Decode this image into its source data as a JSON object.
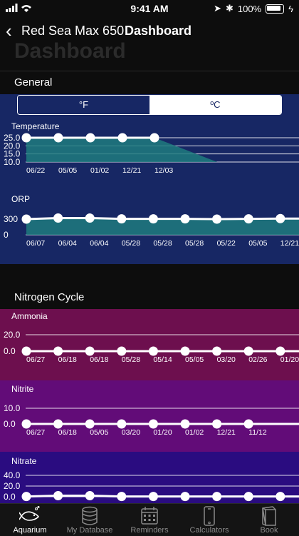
{
  "status_bar": {
    "time": "9:41 AM",
    "battery": "100%"
  },
  "nav": {
    "back_label": "Red Sea Max 650",
    "title": "Dashboard",
    "large_title": "Dashboard"
  },
  "general": {
    "section_label": "General",
    "units": {
      "fahrenheit": "°F",
      "celsius": "ºC",
      "selected": "celsius"
    }
  },
  "nitrogen": {
    "section_label": "Nitrogen Cycle"
  },
  "charts": [
    {
      "id": "temperature",
      "label": "Temperature",
      "type": "line",
      "ticks": [
        "25.0",
        "20.0",
        "15.0",
        "10.0"
      ],
      "tick_values": [
        25,
        20,
        15,
        10
      ],
      "ylim": [
        10,
        25
      ],
      "x": [
        "06/22",
        "05/05",
        "01/02",
        "12/21",
        "12/03"
      ],
      "values": [
        25,
        25,
        25,
        25,
        25
      ],
      "colors": {
        "fill": "#1f7b7e",
        "line": "#ffffff"
      }
    },
    {
      "id": "orp",
      "label": "ORP",
      "type": "line",
      "ticks": [
        "300",
        "0"
      ],
      "tick_values": [
        300,
        0
      ],
      "ylim": [
        0,
        300
      ],
      "x": [
        "06/07",
        "06/04",
        "06/04",
        "05/28",
        "05/28",
        "05/28",
        "05/22",
        "05/05",
        "12/21"
      ],
      "values": [
        300,
        320,
        320,
        305,
        305,
        305,
        300,
        305,
        310
      ],
      "colors": {
        "fill": "#1f7b7e",
        "line": "#ffffff"
      }
    },
    {
      "id": "ammonia",
      "label": "Ammonia",
      "type": "line",
      "ticks": [
        "20.0",
        "0.0"
      ],
      "tick_values": [
        20,
        0
      ],
      "ylim": [
        0,
        20
      ],
      "x": [
        "06/27",
        "06/18",
        "06/18",
        "05/28",
        "05/14",
        "05/05",
        "03/20",
        "02/26",
        "01/20"
      ],
      "values": [
        0,
        0,
        0,
        0,
        0,
        0,
        0,
        0,
        0
      ],
      "colors": {
        "fill": "#ffffff",
        "line": "#ffffff"
      }
    },
    {
      "id": "nitrite",
      "label": "Nitrite",
      "type": "line",
      "ticks": [
        "10.0",
        "0.0"
      ],
      "tick_values": [
        10,
        0
      ],
      "ylim": [
        0,
        10
      ],
      "x": [
        "06/27",
        "06/18",
        "05/05",
        "03/20",
        "01/20",
        "01/02",
        "12/21",
        "11/12"
      ],
      "values": [
        0,
        0,
        0,
        0,
        0,
        0,
        0,
        0
      ],
      "colors": {
        "fill": "#ffffff",
        "line": "#ffffff"
      }
    },
    {
      "id": "nitrate",
      "label": "Nitrate",
      "type": "line",
      "ticks": [
        "40.0",
        "20.0",
        "0.0"
      ],
      "tick_values": [
        40,
        20,
        0
      ],
      "ylim": [
        0,
        40
      ],
      "x": [],
      "values": [
        0.5,
        2,
        2,
        0.5,
        0.5,
        0.5,
        0.5,
        0.5,
        0.5
      ],
      "colors": {
        "fill": "#ffffff",
        "line": "#ffffff"
      }
    }
  ],
  "tabbar": {
    "items": [
      {
        "label": "Aquarium",
        "icon": "fish-icon",
        "active": true
      },
      {
        "label": "My Database",
        "icon": "database-icon",
        "active": false
      },
      {
        "label": "Reminders",
        "icon": "calendar-icon",
        "active": false
      },
      {
        "label": "Calculators",
        "icon": "phone-icon",
        "active": false
      },
      {
        "label": "Book",
        "icon": "book-icon",
        "active": false
      }
    ]
  }
}
